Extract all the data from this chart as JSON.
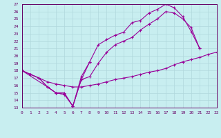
{
  "xlim": [
    0,
    23
  ],
  "ylim": [
    13,
    27
  ],
  "xticks": [
    0,
    1,
    2,
    3,
    4,
    5,
    6,
    7,
    8,
    9,
    10,
    11,
    12,
    13,
    14,
    15,
    16,
    17,
    18,
    19,
    20,
    21,
    22,
    23
  ],
  "yticks": [
    13,
    14,
    15,
    16,
    17,
    18,
    19,
    20,
    21,
    22,
    23,
    24,
    25,
    26,
    27
  ],
  "bg_color": "#c8eef0",
  "line_color": "#990099",
  "grid_color": "#b0d8dc",
  "series": [
    {
      "x": [
        0,
        1,
        2,
        3,
        4,
        5,
        6,
        7,
        8,
        9,
        10,
        11,
        12,
        13,
        14,
        15,
        16,
        17,
        18,
        19,
        20,
        21
      ],
      "y": [
        18.0,
        17.5,
        17.0,
        15.8,
        15.0,
        14.8,
        13.2,
        17.2,
        19.2,
        21.5,
        22.2,
        22.8,
        23.2,
        24.5,
        24.8,
        25.8,
        26.3,
        27.0,
        26.5,
        25.3,
        23.3,
        21.0
      ]
    },
    {
      "x": [
        0,
        1,
        2,
        3,
        4,
        5,
        6,
        7,
        8,
        9,
        10,
        11,
        12,
        13,
        14,
        15,
        16,
        17,
        18,
        19,
        20,
        21
      ],
      "y": [
        18.0,
        17.5,
        17.0,
        15.8,
        15.0,
        14.8,
        13.2,
        16.8,
        17.2,
        19.0,
        20.5,
        21.5,
        22.0,
        22.5,
        23.5,
        24.3,
        25.0,
        26.0,
        25.8,
        25.0,
        23.8,
        21.0
      ]
    },
    {
      "x": [
        0,
        3,
        4,
        5,
        6,
        7,
        8,
        9,
        10,
        11,
        12,
        13,
        14,
        15,
        16,
        17,
        18,
        19,
        20,
        21,
        22,
        23
      ],
      "y": [
        18.0,
        15.8,
        15.0,
        15.0,
        13.2,
        16.8,
        19.2,
        null,
        null,
        null,
        null,
        null,
        null,
        null,
        null,
        null,
        null,
        null,
        null,
        null,
        null,
        null
      ]
    },
    {
      "x": [
        0,
        1,
        2,
        3,
        4,
        5,
        6,
        7,
        8,
        9,
        10,
        11,
        12,
        13,
        14,
        15,
        16,
        17,
        18,
        19,
        20,
        21,
        22,
        23
      ],
      "y": [
        18.0,
        17.5,
        17.0,
        16.5,
        16.2,
        16.0,
        15.8,
        15.8,
        16.0,
        16.2,
        16.5,
        16.8,
        17.0,
        17.2,
        17.5,
        17.8,
        18.0,
        18.3,
        18.8,
        19.2,
        19.5,
        19.8,
        20.2,
        20.5
      ]
    }
  ]
}
